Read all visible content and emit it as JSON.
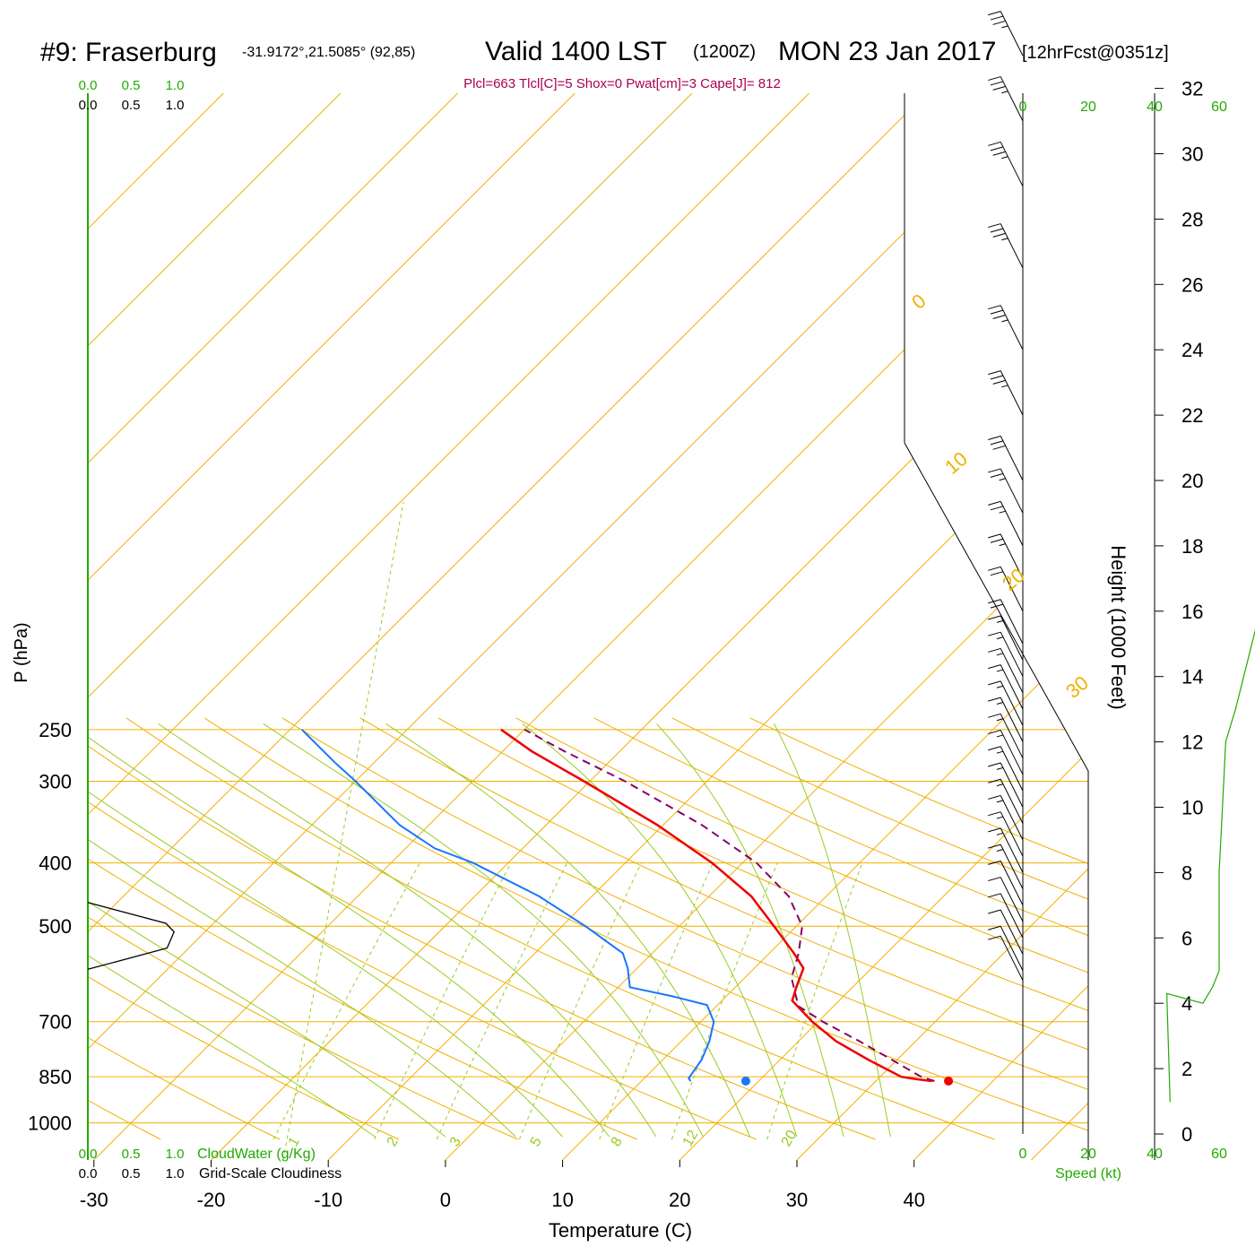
{
  "title": {
    "station": "#9: Fraserburg",
    "coords": "-31.9172°,21.5085° (92,85)",
    "valid": "Valid 1400 LST",
    "zulu": "(1200Z)",
    "date": "MON 23 Jan 2017",
    "forecast": "[12hrFcst@0351z]"
  },
  "indices": "Plcl=663 Tlcl[C]=5 Shox=0 Pwat[cm]=3 Cape[J]= 812",
  "cloud": {
    "water_ticks": [
      "0.0",
      "0.5",
      "1.0"
    ],
    "cover_ticks": [
      "0.0",
      "0.5",
      "1.0"
    ],
    "water_label": "CloudWater (g/Kg)",
    "cover_label": "Grid-Scale Cloudiness"
  },
  "speed": {
    "ticks": [
      "0",
      "20",
      "40",
      "60"
    ],
    "label": "Speed (kt)"
  },
  "axes": {
    "xlabel": "Temperature (C)",
    "ylabel": "P (hPa)",
    "y2label": "Height (1000 Feet)",
    "x_ticks": [
      "-30",
      "-20",
      "-10",
      "0",
      "10",
      "20",
      "30",
      "40"
    ],
    "p_ticks": [
      "250",
      "300",
      "400",
      "500",
      "700",
      "850",
      "1000"
    ],
    "height_ticks": [
      "0",
      "2",
      "4",
      "6",
      "8",
      "10",
      "12",
      "14",
      "16",
      "18",
      "20",
      "22",
      "24",
      "26",
      "28",
      "30",
      "32"
    ]
  },
  "diagram_labels": {
    "isotherms": [
      "10",
      "0",
      "-10",
      "-20",
      "-30"
    ],
    "dry_adiabats": [
      "0",
      "10",
      "20",
      "30"
    ],
    "mixing_ratios": [
      "1",
      "2",
      "3",
      "5",
      "8",
      "12",
      "20"
    ]
  },
  "colors": {
    "temperature": "#ee0000",
    "dewpoint": "#1a75ff",
    "parcel": "#880066",
    "isotherm": "#f0b000",
    "moist_adiabat": "#99cc22",
    "mixing_ratio": "#99cc22",
    "green_text": "#22aa00",
    "indices": "#aa0055",
    "cloud_profile": "#000000",
    "speed_profile": "#22aa00"
  },
  "chart_data": {
    "type": "skew-t",
    "temperature_profile": [
      [
        863,
        34.8
      ],
      [
        858,
        33.5
      ],
      [
        850,
        31.8
      ],
      [
        800,
        27.5
      ],
      [
        750,
        23.2
      ],
      [
        700,
        19.5
      ],
      [
        650,
        16.0
      ],
      [
        620,
        15.2
      ],
      [
        580,
        14.2
      ],
      [
        550,
        12.1
      ],
      [
        500,
        8.1
      ],
      [
        450,
        3.6
      ],
      [
        400,
        -2.6
      ],
      [
        350,
        -10.5
      ],
      [
        300,
        -20.5
      ],
      [
        270,
        -27.5
      ],
      [
        250,
        -32.0
      ]
    ],
    "dewpoint_profile": [
      [
        863,
        14.2
      ],
      [
        855,
        13.8
      ],
      [
        800,
        13.3
      ],
      [
        750,
        12.4
      ],
      [
        700,
        11.1
      ],
      [
        660,
        9.1
      ],
      [
        640,
        5.4
      ],
      [
        620,
        1.0
      ],
      [
        580,
        -0.8
      ],
      [
        550,
        -2.5
      ],
      [
        500,
        -8.0
      ],
      [
        450,
        -14.5
      ],
      [
        400,
        -23.0
      ],
      [
        380,
        -27.5
      ],
      [
        350,
        -32.5
      ],
      [
        300,
        -40.0
      ],
      [
        280,
        -43.5
      ],
      [
        250,
        -49.0
      ]
    ],
    "parcel_profile": [
      [
        863,
        35.0
      ],
      [
        850,
        33.5
      ],
      [
        800,
        29.5
      ],
      [
        750,
        25.2
      ],
      [
        700,
        20.4
      ],
      [
        680,
        18.6
      ],
      [
        663,
        17.0
      ],
      [
        600,
        14.0
      ],
      [
        550,
        12.5
      ],
      [
        500,
        10.5
      ],
      [
        450,
        6.8
      ],
      [
        400,
        1.2
      ],
      [
        350,
        -6.7
      ],
      [
        300,
        -17.0
      ],
      [
        270,
        -24.7
      ],
      [
        250,
        -30.0
      ]
    ],
    "surface_temperature": [
      863,
      36.2
    ],
    "surface_dewpoint": [
      863,
      18.9
    ],
    "cloud_cover_profile": [
      [
        460,
        0.0
      ],
      [
        495,
        0.67
      ],
      [
        510,
        0.74
      ],
      [
        540,
        0.68
      ],
      [
        582,
        0.0
      ]
    ],
    "wind_speed_profile": [
      [
        0.98,
        45
      ],
      [
        4.3,
        44
      ],
      [
        4.0,
        55
      ],
      [
        4.5,
        58
      ],
      [
        5,
        60
      ],
      [
        8,
        60
      ],
      [
        10,
        61
      ],
      [
        12,
        62
      ],
      [
        13,
        65
      ],
      [
        15,
        70
      ],
      [
        17,
        75
      ],
      [
        19,
        78
      ],
      [
        21,
        80
      ],
      [
        23,
        81
      ],
      [
        25,
        82
      ],
      [
        28,
        82
      ],
      [
        30,
        82
      ],
      [
        32,
        82
      ],
      [
        34,
        83
      ]
    ],
    "wind_barbs": [
      [
        4.7,
        290,
        10
      ],
      [
        5.0,
        290,
        10
      ],
      [
        5.5,
        290,
        12
      ],
      [
        6.0,
        285,
        12
      ],
      [
        6.5,
        285,
        12
      ],
      [
        7.0,
        285,
        12
      ],
      [
        7.5,
        285,
        13
      ],
      [
        8.0,
        285,
        13
      ],
      [
        8.5,
        285,
        13
      ],
      [
        9.0,
        285,
        13
      ],
      [
        9.5,
        285,
        13
      ],
      [
        10.0,
        285,
        13
      ],
      [
        10.5,
        285,
        14
      ],
      [
        11.0,
        285,
        14
      ],
      [
        11.5,
        285,
        14
      ],
      [
        12.0,
        285,
        14
      ],
      [
        12.5,
        285,
        14
      ],
      [
        13.0,
        285,
        15
      ],
      [
        13.5,
        285,
        15
      ],
      [
        14.0,
        285,
        15
      ],
      [
        14.5,
        285,
        15
      ],
      [
        15.0,
        290,
        20
      ],
      [
        16.0,
        290,
        20
      ],
      [
        17.0,
        290,
        25
      ],
      [
        18.0,
        290,
        25
      ],
      [
        19.0,
        290,
        25
      ],
      [
        20.0,
        290,
        30
      ],
      [
        22.0,
        290,
        35
      ],
      [
        24.0,
        290,
        35
      ],
      [
        26.5,
        300,
        35
      ],
      [
        29.0,
        300,
        35
      ],
      [
        31.0,
        300,
        35
      ],
      [
        33.0,
        300,
        35
      ],
      [
        35.0,
        300,
        35
      ]
    ],
    "xlim": [
      -34.5,
      45
    ],
    "plim": [
      1050,
      250
    ],
    "height_range_kft": [
      0,
      33
    ]
  }
}
